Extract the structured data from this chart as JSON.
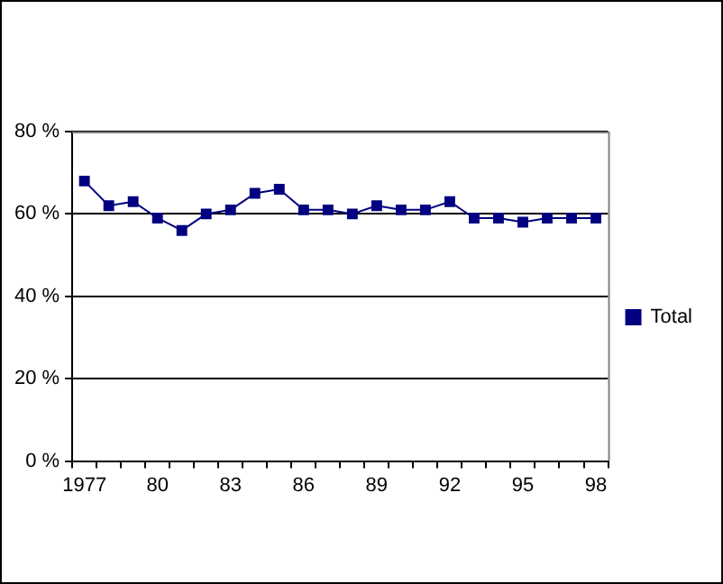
{
  "chart_data": {
    "type": "line",
    "categories": [
      "1977",
      null,
      null,
      "80",
      null,
      null,
      "83",
      null,
      null,
      "86",
      null,
      null,
      "89",
      null,
      null,
      "92",
      null,
      null,
      "95",
      null,
      null,
      "98"
    ],
    "series": [
      {
        "name": "Total",
        "color": "#000080",
        "values": [
          68,
          62,
          63,
          59,
          56,
          60,
          61,
          65,
          66,
          61,
          61,
          60,
          62,
          61,
          61,
          63,
          59,
          59,
          58,
          59,
          59,
          59
        ]
      }
    ],
    "ylim": [
      0,
      80
    ],
    "yticks": [
      {
        "value": 0,
        "label": "0 %"
      },
      {
        "value": 20,
        "label": "20 %"
      },
      {
        "value": 40,
        "label": "40 %"
      },
      {
        "value": 60,
        "label": "60 %"
      },
      {
        "value": 80,
        "label": "80 %"
      }
    ],
    "grid": "y",
    "legend": "right",
    "marker": "square",
    "line_style": "solid"
  }
}
